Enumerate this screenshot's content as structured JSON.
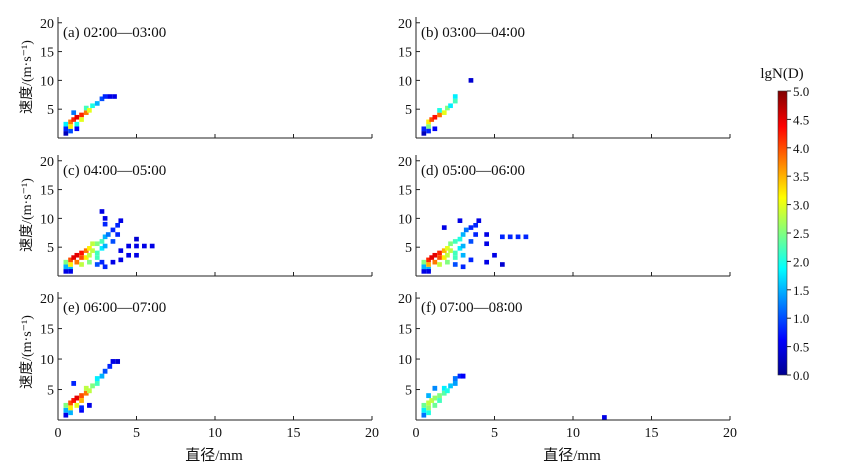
{
  "chart_data": {
    "type": "heatmap",
    "colorbar": {
      "label": "lgN(D)",
      "min": 0.0,
      "max": 5.0,
      "ticks": [
        "0.0",
        "0.5",
        "1.0",
        "1.5",
        "2.0",
        "2.5",
        "3.0",
        "3.5",
        "4.0",
        "4.5",
        "5.0"
      ]
    },
    "xlabel": "直径/mm",
    "ylabel": "速度/(m·s⁻¹)",
    "xlim": [
      0,
      20
    ],
    "ylim": [
      0,
      21
    ],
    "xticks": [
      "0",
      "5",
      "10",
      "15",
      "20"
    ],
    "yticks": [
      "5",
      "10",
      "15",
      "20"
    ],
    "panels": [
      {
        "label": "(a) 02∶00—03∶00",
        "cells": [
          [
            0.5,
            0.8,
            0.3
          ],
          [
            0.5,
            1.6,
            0.8
          ],
          [
            0.5,
            2.4,
            1.8
          ],
          [
            0.8,
            1.2,
            1.0
          ],
          [
            0.8,
            2.0,
            3.2
          ],
          [
            0.8,
            2.8,
            3.8
          ],
          [
            1.0,
            3.2,
            4.2
          ],
          [
            1.2,
            2.4,
            2.0
          ],
          [
            1.2,
            3.6,
            4.5
          ],
          [
            1.5,
            4.0,
            4.2
          ],
          [
            1.5,
            3.2,
            3.0
          ],
          [
            1.8,
            4.4,
            3.8
          ],
          [
            1.8,
            5.2,
            2.2
          ],
          [
            2.0,
            4.8,
            3.0
          ],
          [
            2.2,
            5.6,
            2.0
          ],
          [
            2.5,
            6.0,
            1.5
          ],
          [
            2.8,
            6.8,
            1.0
          ],
          [
            3.0,
            7.2,
            0.8
          ],
          [
            3.3,
            7.2,
            0.5
          ],
          [
            3.6,
            7.2,
            0.5
          ],
          [
            1.2,
            1.6,
            0.6
          ],
          [
            1.0,
            4.4,
            1.2
          ]
        ]
      },
      {
        "label": "(b) 03∶00—04∶00",
        "cells": [
          [
            0.5,
            0.8,
            0.3
          ],
          [
            0.5,
            1.6,
            0.8
          ],
          [
            0.8,
            2.0,
            2.5
          ],
          [
            0.8,
            2.8,
            3.2
          ],
          [
            1.0,
            3.2,
            4.0
          ],
          [
            1.2,
            3.6,
            4.3
          ],
          [
            1.5,
            4.0,
            3.8
          ],
          [
            1.8,
            4.4,
            3.0
          ],
          [
            2.0,
            5.2,
            2.5
          ],
          [
            2.2,
            5.6,
            1.8
          ],
          [
            2.5,
            6.4,
            2.2
          ],
          [
            2.5,
            7.2,
            1.8
          ],
          [
            3.5,
            10.0,
            0.4
          ],
          [
            1.2,
            1.6,
            0.6
          ],
          [
            0.8,
            1.2,
            0.8
          ],
          [
            1.5,
            4.8,
            2.0
          ]
        ]
      },
      {
        "label": "(c) 04∶00—05∶00",
        "cells": [
          [
            0.5,
            0.8,
            0.5
          ],
          [
            0.5,
            1.6,
            1.5
          ],
          [
            0.5,
            2.4,
            2.5
          ],
          [
            0.8,
            1.2,
            1.5
          ],
          [
            0.8,
            2.0,
            3.2
          ],
          [
            0.8,
            2.8,
            4.0
          ],
          [
            1.0,
            3.2,
            4.5
          ],
          [
            1.2,
            3.6,
            4.5
          ],
          [
            1.2,
            2.4,
            3.8
          ],
          [
            1.5,
            4.0,
            4.3
          ],
          [
            1.5,
            3.2,
            4.0
          ],
          [
            1.5,
            2.0,
            2.8
          ],
          [
            1.8,
            4.4,
            3.8
          ],
          [
            1.8,
            3.2,
            3.2
          ],
          [
            2.0,
            4.8,
            3.2
          ],
          [
            2.0,
            3.6,
            2.8
          ],
          [
            2.2,
            5.6,
            2.8
          ],
          [
            2.2,
            4.4,
            2.8
          ],
          [
            2.5,
            5.6,
            2.5
          ],
          [
            2.5,
            4.0,
            2.2
          ],
          [
            2.8,
            6.0,
            2.2
          ],
          [
            2.8,
            4.8,
            1.8
          ],
          [
            3.0,
            6.8,
            1.5
          ],
          [
            3.0,
            5.2,
            1.5
          ],
          [
            3.2,
            7.2,
            1.2
          ],
          [
            3.5,
            8.0,
            0.8
          ],
          [
            3.5,
            6.0,
            1.0
          ],
          [
            3.8,
            8.8,
            0.8
          ],
          [
            4.0,
            9.6,
            0.5
          ],
          [
            3.8,
            7.2,
            0.8
          ],
          [
            3.0,
            9.0,
            0.8
          ],
          [
            3.0,
            10.0,
            0.5
          ],
          [
            2.8,
            11.2,
            0.5
          ],
          [
            4.0,
            4.4,
            0.5
          ],
          [
            4.5,
            5.2,
            0.5
          ],
          [
            5.0,
            5.2,
            0.5
          ],
          [
            5.5,
            5.2,
            0.5
          ],
          [
            6.0,
            5.2,
            0.5
          ],
          [
            5.0,
            6.4,
            0.4
          ],
          [
            4.5,
            3.6,
            0.5
          ],
          [
            5.0,
            3.6,
            0.5
          ],
          [
            3.5,
            2.4,
            0.5
          ],
          [
            4.0,
            2.8,
            0.5
          ],
          [
            2.8,
            2.4,
            0.8
          ],
          [
            2.5,
            2.0,
            1.0
          ],
          [
            3.0,
            1.6,
            0.8
          ],
          [
            2.5,
            3.2,
            2.2
          ],
          [
            2.0,
            2.4,
            2.5
          ],
          [
            0.8,
            0.8,
            0.5
          ]
        ]
      },
      {
        "label": "(d) 05∶00—06∶00",
        "cells": [
          [
            0.5,
            0.8,
            0.5
          ],
          [
            0.5,
            1.6,
            1.5
          ],
          [
            0.5,
            2.4,
            2.5
          ],
          [
            0.8,
            1.2,
            1.5
          ],
          [
            0.8,
            2.0,
            3.5
          ],
          [
            0.8,
            2.8,
            4.2
          ],
          [
            1.0,
            3.2,
            4.5
          ],
          [
            1.2,
            3.6,
            4.5
          ],
          [
            1.2,
            2.4,
            3.8
          ],
          [
            1.5,
            4.0,
            4.2
          ],
          [
            1.5,
            3.2,
            4.0
          ],
          [
            1.5,
            2.0,
            2.8
          ],
          [
            1.8,
            4.4,
            3.5
          ],
          [
            1.8,
            3.2,
            3.2
          ],
          [
            2.0,
            4.8,
            3.0
          ],
          [
            2.0,
            3.6,
            2.8
          ],
          [
            2.2,
            5.6,
            2.5
          ],
          [
            2.2,
            4.4,
            2.8
          ],
          [
            2.5,
            6.0,
            2.2
          ],
          [
            2.5,
            4.0,
            2.2
          ],
          [
            2.8,
            6.4,
            2.0
          ],
          [
            2.8,
            4.8,
            1.8
          ],
          [
            3.0,
            7.2,
            1.5
          ],
          [
            3.0,
            5.2,
            1.5
          ],
          [
            3.2,
            8.0,
            1.2
          ],
          [
            3.5,
            8.4,
            0.8
          ],
          [
            3.5,
            6.0,
            1.0
          ],
          [
            3.8,
            8.8,
            0.8
          ],
          [
            4.0,
            9.6,
            0.5
          ],
          [
            3.8,
            7.2,
            0.8
          ],
          [
            2.8,
            9.6,
            0.5
          ],
          [
            4.5,
            7.2,
            0.5
          ],
          [
            4.5,
            5.6,
            0.5
          ],
          [
            5.5,
            6.8,
            0.8
          ],
          [
            6.0,
            6.8,
            0.8
          ],
          [
            6.5,
            6.8,
            0.8
          ],
          [
            7.0,
            6.8,
            0.8
          ],
          [
            5.0,
            3.6,
            0.5
          ],
          [
            5.5,
            2.0,
            0.4
          ],
          [
            4.5,
            2.4,
            0.5
          ],
          [
            3.5,
            2.8,
            0.8
          ],
          [
            2.5,
            2.0,
            1.0
          ],
          [
            3.0,
            1.6,
            0.8
          ],
          [
            2.0,
            2.4,
            2.5
          ],
          [
            2.5,
            3.2,
            2.2
          ],
          [
            3.0,
            3.6,
            1.5
          ],
          [
            0.8,
            0.8,
            0.5
          ],
          [
            1.8,
            8.4,
            0.5
          ]
        ]
      },
      {
        "label": "(e) 06∶00—07∶00",
        "cells": [
          [
            0.5,
            0.8,
            0.5
          ],
          [
            0.5,
            1.6,
            1.5
          ],
          [
            0.5,
            2.4,
            2.5
          ],
          [
            0.8,
            1.2,
            1.5
          ],
          [
            0.8,
            2.0,
            3.2
          ],
          [
            0.8,
            2.8,
            4.0
          ],
          [
            1.0,
            3.2,
            4.3
          ],
          [
            1.2,
            3.6,
            4.5
          ],
          [
            1.2,
            2.4,
            3.0
          ],
          [
            1.5,
            4.0,
            4.0
          ],
          [
            1.5,
            3.2,
            3.5
          ],
          [
            1.8,
            4.4,
            3.8
          ],
          [
            1.8,
            5.2,
            2.8
          ],
          [
            2.0,
            4.8,
            2.8
          ],
          [
            2.2,
            5.6,
            2.5
          ],
          [
            2.5,
            6.0,
            2.2
          ],
          [
            2.5,
            6.8,
            1.8
          ],
          [
            2.8,
            7.2,
            1.5
          ],
          [
            3.0,
            8.0,
            1.0
          ],
          [
            3.3,
            8.8,
            0.8
          ],
          [
            3.5,
            9.6,
            0.5
          ],
          [
            3.8,
            9.6,
            0.4
          ],
          [
            1.0,
            6.0,
            0.8
          ],
          [
            1.5,
            1.6,
            0.6
          ],
          [
            2.0,
            2.4,
            0.5
          ],
          [
            1.5,
            2.0,
            0.8
          ]
        ]
      },
      {
        "label": "(f) 07∶00—08∶00",
        "cells": [
          [
            0.5,
            0.8,
            1.2
          ],
          [
            0.5,
            1.6,
            1.8
          ],
          [
            0.5,
            2.4,
            2.4
          ],
          [
            0.8,
            1.2,
            2.0
          ],
          [
            0.8,
            2.0,
            2.6
          ],
          [
            0.8,
            2.8,
            2.8
          ],
          [
            1.0,
            3.2,
            2.8
          ],
          [
            1.2,
            3.6,
            2.6
          ],
          [
            1.2,
            2.4,
            2.4
          ],
          [
            1.5,
            4.0,
            2.5
          ],
          [
            1.5,
            3.2,
            2.2
          ],
          [
            1.8,
            4.4,
            2.3
          ],
          [
            1.8,
            5.2,
            1.8
          ],
          [
            2.0,
            4.8,
            2.0
          ],
          [
            2.2,
            5.6,
            1.6
          ],
          [
            2.5,
            6.0,
            1.4
          ],
          [
            2.5,
            6.8,
            1.2
          ],
          [
            2.8,
            7.2,
            0.8
          ],
          [
            3.0,
            7.2,
            0.6
          ],
          [
            0.8,
            4.0,
            1.5
          ],
          [
            1.2,
            5.2,
            1.3
          ],
          [
            12.0,
            0.4,
            0.5
          ]
        ]
      }
    ]
  }
}
